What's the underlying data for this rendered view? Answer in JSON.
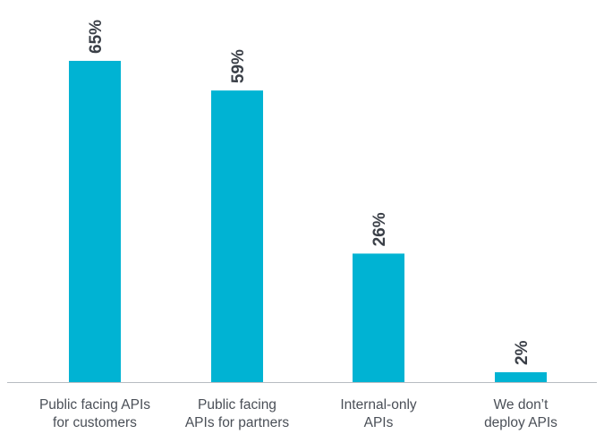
{
  "chart_data": {
    "type": "bar",
    "categories": [
      [
        "Public facing APIs",
        "for customers"
      ],
      [
        "Public facing",
        "APIs for partners"
      ],
      [
        "Internal-only",
        "APIs"
      ],
      [
        "We don’t",
        "deploy APIs"
      ]
    ],
    "values": [
      65,
      59,
      26,
      2
    ],
    "value_labels": [
      "65%",
      "59%",
      "26%",
      "2%"
    ],
    "title": "",
    "xlabel": "",
    "ylabel": "",
    "ylim": [
      0,
      100
    ],
    "grid": false,
    "bar_color": "#00b3d3",
    "axis_color": "#b8bcc2"
  }
}
